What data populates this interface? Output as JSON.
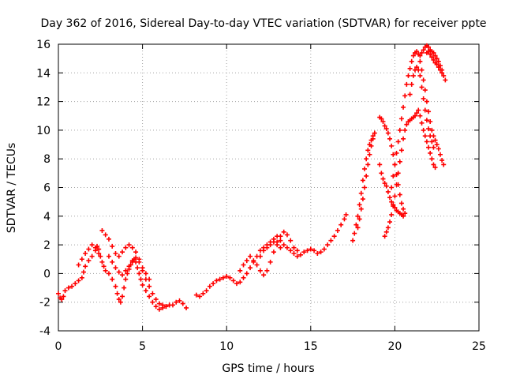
{
  "chart_data": {
    "type": "scatter",
    "title": "Day 362 of 2016, Sidereal Day-to-day VTEC variation (SDTVAR) for receiver ppte",
    "xlabel": "GPS time / hours",
    "ylabel": "SDTVAR / TECUs",
    "xlim": [
      0,
      25
    ],
    "ylim": [
      -4,
      16
    ],
    "xticks": [
      0,
      5,
      10,
      15,
      20,
      25
    ],
    "yticks": [
      -4,
      -2,
      0,
      2,
      4,
      6,
      8,
      10,
      12,
      14,
      16
    ],
    "grid": true,
    "marker": "+",
    "color": "#ff0000",
    "series": [
      {
        "name": "SDTVAR",
        "points": [
          [
            0.0,
            -1.4
          ],
          [
            0.1,
            -1.7
          ],
          [
            0.2,
            -1.8
          ],
          [
            0.3,
            -1.6
          ],
          [
            0.4,
            -1.2
          ],
          [
            0.6,
            -1.0
          ],
          [
            0.8,
            -0.9
          ],
          [
            1.0,
            -0.7
          ],
          [
            1.2,
            -0.5
          ],
          [
            1.4,
            -0.3
          ],
          [
            1.5,
            0.1
          ],
          [
            1.6,
            0.5
          ],
          [
            1.8,
            0.9
          ],
          [
            2.0,
            1.2
          ],
          [
            2.2,
            1.6
          ],
          [
            2.3,
            1.9
          ],
          [
            2.4,
            1.7
          ],
          [
            2.5,
            1.2
          ],
          [
            2.6,
            0.8
          ],
          [
            2.7,
            0.5
          ],
          [
            2.8,
            0.2
          ],
          [
            3.0,
            0.0
          ],
          [
            3.2,
            -0.4
          ],
          [
            3.4,
            -0.9
          ],
          [
            3.5,
            -1.4
          ],
          [
            3.6,
            -1.8
          ],
          [
            3.7,
            -2.0
          ],
          [
            3.8,
            -1.6
          ],
          [
            3.9,
            -1.0
          ],
          [
            4.0,
            -0.4
          ],
          [
            4.1,
            0.0
          ],
          [
            4.2,
            0.3
          ],
          [
            4.3,
            0.6
          ],
          [
            4.4,
            0.8
          ],
          [
            4.5,
            1.0
          ],
          [
            4.6,
            0.8
          ],
          [
            4.7,
            0.4
          ],
          [
            4.8,
            0.0
          ],
          [
            4.9,
            -0.4
          ],
          [
            5.0,
            -0.8
          ],
          [
            5.2,
            -1.2
          ],
          [
            5.4,
            -1.6
          ],
          [
            5.6,
            -2.0
          ],
          [
            5.8,
            -2.3
          ],
          [
            6.0,
            -2.5
          ],
          [
            6.2,
            -2.4
          ],
          [
            6.4,
            -2.3
          ],
          [
            6.6,
            -2.2
          ],
          [
            6.8,
            -2.2
          ],
          [
            7.0,
            -2.0
          ],
          [
            7.2,
            -1.9
          ],
          [
            7.4,
            -2.1
          ],
          [
            7.6,
            -2.4
          ],
          [
            1.2,
            0.6
          ],
          [
            1.4,
            1.0
          ],
          [
            1.6,
            1.4
          ],
          [
            1.8,
            1.7
          ],
          [
            2.0,
            2.0
          ],
          [
            2.2,
            1.8
          ],
          [
            2.4,
            1.4
          ],
          [
            2.6,
            3.0
          ],
          [
            2.8,
            2.7
          ],
          [
            3.0,
            2.4
          ],
          [
            3.2,
            1.9
          ],
          [
            3.4,
            1.4
          ],
          [
            3.6,
            1.2
          ],
          [
            3.8,
            1.5
          ],
          [
            4.0,
            1.8
          ],
          [
            4.2,
            2.0
          ],
          [
            4.4,
            1.8
          ],
          [
            4.6,
            1.5
          ],
          [
            4.8,
            1.0
          ],
          [
            5.0,
            0.2
          ],
          [
            5.2,
            -0.4
          ],
          [
            5.4,
            -0.9
          ],
          [
            5.6,
            -1.4
          ],
          [
            5.8,
            -1.8
          ],
          [
            6.0,
            -2.1
          ],
          [
            6.2,
            -2.2
          ],
          [
            6.4,
            -2.3
          ],
          [
            6.6,
            -2.2
          ],
          [
            3.0,
            1.2
          ],
          [
            3.2,
            0.8
          ],
          [
            3.4,
            0.4
          ],
          [
            3.6,
            0.1
          ],
          [
            3.8,
            -0.1
          ],
          [
            4.0,
            0.2
          ],
          [
            4.2,
            0.5
          ],
          [
            4.4,
            0.9
          ],
          [
            4.6,
            1.1
          ],
          [
            4.8,
            0.8
          ],
          [
            5.0,
            0.4
          ],
          [
            5.2,
            0.0
          ],
          [
            5.4,
            -0.4
          ],
          [
            8.2,
            -1.5
          ],
          [
            8.4,
            -1.6
          ],
          [
            8.6,
            -1.4
          ],
          [
            8.8,
            -1.2
          ],
          [
            9.0,
            -0.9
          ],
          [
            9.2,
            -0.7
          ],
          [
            9.4,
            -0.5
          ],
          [
            9.6,
            -0.4
          ],
          [
            9.8,
            -0.3
          ],
          [
            10.0,
            -0.2
          ],
          [
            10.2,
            -0.3
          ],
          [
            10.4,
            -0.5
          ],
          [
            10.6,
            -0.7
          ],
          [
            10.8,
            -0.6
          ],
          [
            11.0,
            -0.3
          ],
          [
            11.2,
            0.0
          ],
          [
            11.4,
            0.4
          ],
          [
            11.6,
            0.8
          ],
          [
            11.8,
            1.2
          ],
          [
            12.0,
            1.6
          ],
          [
            12.2,
            1.8
          ],
          [
            12.4,
            2.0
          ],
          [
            12.6,
            2.2
          ],
          [
            12.8,
            2.4
          ],
          [
            13.0,
            2.6
          ],
          [
            13.2,
            2.3
          ],
          [
            13.4,
            2.0
          ],
          [
            13.6,
            1.8
          ],
          [
            13.8,
            1.6
          ],
          [
            14.0,
            1.4
          ],
          [
            14.2,
            1.2
          ],
          [
            14.4,
            1.3
          ],
          [
            14.6,
            1.5
          ],
          [
            14.8,
            1.6
          ],
          [
            15.0,
            1.7
          ],
          [
            15.2,
            1.6
          ],
          [
            15.4,
            1.4
          ],
          [
            15.6,
            1.5
          ],
          [
            15.8,
            1.7
          ],
          [
            16.0,
            2.0
          ],
          [
            16.2,
            2.3
          ],
          [
            16.4,
            2.6
          ],
          [
            16.6,
            3.0
          ],
          [
            16.8,
            3.4
          ],
          [
            17.0,
            3.8
          ],
          [
            17.1,
            4.1
          ],
          [
            10.8,
            0.2
          ],
          [
            11.0,
            0.6
          ],
          [
            11.2,
            0.9
          ],
          [
            11.4,
            1.2
          ],
          [
            11.6,
            0.9
          ],
          [
            11.8,
            0.6
          ],
          [
            12.0,
            0.2
          ],
          [
            12.2,
            -0.1
          ],
          [
            12.4,
            0.2
          ],
          [
            12.6,
            0.8
          ],
          [
            12.8,
            1.5
          ],
          [
            13.0,
            2.2
          ],
          [
            13.2,
            2.6
          ],
          [
            13.4,
            2.9
          ],
          [
            13.6,
            2.7
          ],
          [
            13.8,
            2.3
          ],
          [
            14.0,
            1.8
          ],
          [
            14.2,
            1.6
          ],
          [
            12.0,
            1.2
          ],
          [
            12.2,
            1.6
          ],
          [
            12.4,
            1.8
          ],
          [
            12.6,
            2.0
          ],
          [
            12.8,
            2.2
          ],
          [
            13.0,
            2.0
          ],
          [
            13.2,
            1.8
          ],
          [
            17.5,
            2.3
          ],
          [
            17.6,
            2.8
          ],
          [
            17.7,
            3.4
          ],
          [
            17.8,
            4.0
          ],
          [
            17.9,
            4.8
          ],
          [
            18.0,
            5.6
          ],
          [
            18.1,
            6.5
          ],
          [
            18.2,
            7.3
          ],
          [
            18.3,
            8.0
          ],
          [
            18.4,
            8.6
          ],
          [
            18.5,
            9.0
          ],
          [
            18.6,
            9.3
          ],
          [
            18.7,
            9.6
          ],
          [
            18.8,
            9.8
          ],
          [
            17.8,
            3.2
          ],
          [
            17.9,
            3.8
          ],
          [
            18.0,
            4.5
          ],
          [
            18.1,
            5.2
          ],
          [
            18.2,
            6.0
          ],
          [
            18.3,
            6.8
          ],
          [
            18.4,
            7.6
          ],
          [
            18.5,
            8.3
          ],
          [
            18.6,
            8.9
          ],
          [
            18.7,
            9.4
          ],
          [
            19.1,
            10.9
          ],
          [
            19.2,
            10.8
          ],
          [
            19.3,
            10.6
          ],
          [
            19.4,
            10.3
          ],
          [
            19.5,
            10.1
          ],
          [
            19.6,
            9.8
          ],
          [
            19.7,
            9.4
          ],
          [
            19.8,
            8.9
          ],
          [
            19.9,
            8.3
          ],
          [
            20.0,
            7.6
          ],
          [
            20.1,
            6.9
          ],
          [
            20.2,
            6.2
          ],
          [
            20.3,
            5.5
          ],
          [
            20.4,
            4.9
          ],
          [
            20.5,
            4.5
          ],
          [
            20.6,
            4.2
          ],
          [
            19.1,
            7.6
          ],
          [
            19.2,
            7.0
          ],
          [
            19.3,
            6.6
          ],
          [
            19.4,
            6.3
          ],
          [
            19.5,
            6.1
          ],
          [
            19.6,
            5.7
          ],
          [
            19.7,
            5.3
          ],
          [
            19.8,
            5.0
          ],
          [
            19.9,
            4.8
          ],
          [
            20.0,
            4.6
          ],
          [
            20.1,
            4.4
          ],
          [
            20.2,
            4.3
          ],
          [
            20.3,
            4.2
          ],
          [
            20.4,
            4.1
          ],
          [
            20.5,
            4.0
          ],
          [
            19.4,
            2.6
          ],
          [
            19.5,
            2.9
          ],
          [
            19.6,
            3.2
          ],
          [
            19.7,
            3.6
          ],
          [
            19.8,
            4.1
          ],
          [
            19.9,
            4.7
          ],
          [
            20.0,
            5.4
          ],
          [
            20.1,
            6.2
          ],
          [
            20.2,
            7.0
          ],
          [
            20.3,
            7.8
          ],
          [
            20.4,
            8.6
          ],
          [
            20.5,
            9.4
          ],
          [
            20.6,
            10.0
          ],
          [
            20.7,
            10.4
          ],
          [
            20.8,
            10.6
          ],
          [
            20.9,
            10.7
          ],
          [
            21.0,
            10.8
          ],
          [
            21.1,
            10.9
          ],
          [
            21.2,
            11.0
          ],
          [
            21.3,
            11.2
          ],
          [
            21.4,
            11.4
          ],
          [
            21.5,
            11.0
          ],
          [
            21.6,
            10.5
          ],
          [
            21.7,
            10.0
          ],
          [
            21.8,
            9.6
          ],
          [
            21.9,
            9.2
          ],
          [
            22.0,
            8.8
          ],
          [
            22.1,
            8.4
          ],
          [
            22.2,
            8.0
          ],
          [
            22.3,
            7.6
          ],
          [
            22.4,
            7.4
          ],
          [
            19.8,
            6.0
          ],
          [
            19.9,
            6.8
          ],
          [
            20.0,
            7.6
          ],
          [
            20.1,
            8.4
          ],
          [
            20.2,
            9.2
          ],
          [
            20.3,
            10.0
          ],
          [
            20.4,
            10.8
          ],
          [
            20.5,
            11.6
          ],
          [
            20.6,
            12.4
          ],
          [
            20.7,
            13.2
          ],
          [
            20.8,
            13.8
          ],
          [
            20.9,
            14.3
          ],
          [
            21.0,
            14.8
          ],
          [
            21.1,
            15.2
          ],
          [
            21.2,
            15.4
          ],
          [
            21.3,
            15.5
          ],
          [
            21.4,
            15.3
          ],
          [
            21.5,
            14.8
          ],
          [
            21.6,
            14.2
          ],
          [
            21.7,
            13.5
          ],
          [
            21.8,
            12.8
          ],
          [
            21.9,
            12.0
          ],
          [
            22.0,
            11.3
          ],
          [
            22.1,
            10.6
          ],
          [
            22.2,
            10.0
          ],
          [
            22.3,
            9.6
          ],
          [
            22.4,
            9.3
          ],
          [
            22.5,
            9.0
          ],
          [
            22.6,
            8.7
          ],
          [
            22.7,
            8.3
          ],
          [
            22.8,
            7.9
          ],
          [
            22.9,
            7.6
          ],
          [
            20.9,
            12.5
          ],
          [
            21.0,
            13.2
          ],
          [
            21.1,
            13.8
          ],
          [
            21.2,
            14.2
          ],
          [
            21.3,
            14.4
          ],
          [
            21.4,
            14.2
          ],
          [
            21.5,
            13.8
          ],
          [
            21.6,
            13.0
          ],
          [
            21.7,
            12.2
          ],
          [
            21.8,
            11.4
          ],
          [
            21.9,
            10.7
          ],
          [
            22.0,
            10.1
          ],
          [
            22.1,
            9.6
          ],
          [
            22.2,
            9.2
          ],
          [
            22.3,
            8.8
          ],
          [
            21.5,
            15.2
          ],
          [
            21.6,
            15.4
          ],
          [
            21.7,
            15.6
          ],
          [
            21.8,
            15.8
          ],
          [
            21.9,
            15.9
          ],
          [
            22.0,
            15.8
          ],
          [
            22.1,
            15.6
          ],
          [
            22.2,
            15.5
          ],
          [
            22.3,
            15.4
          ],
          [
            22.4,
            15.2
          ],
          [
            22.5,
            15.0
          ],
          [
            22.6,
            14.8
          ],
          [
            22.7,
            14.5
          ],
          [
            22.8,
            14.2
          ],
          [
            22.9,
            13.8
          ],
          [
            23.0,
            13.5
          ],
          [
            21.9,
            15.4
          ],
          [
            22.0,
            15.5
          ],
          [
            22.1,
            15.3
          ],
          [
            22.2,
            15.1
          ],
          [
            22.3,
            14.9
          ],
          [
            22.4,
            14.7
          ],
          [
            22.5,
            14.6
          ],
          [
            22.6,
            14.4
          ],
          [
            22.7,
            14.2
          ],
          [
            22.8,
            14.0
          ]
        ]
      }
    ]
  }
}
